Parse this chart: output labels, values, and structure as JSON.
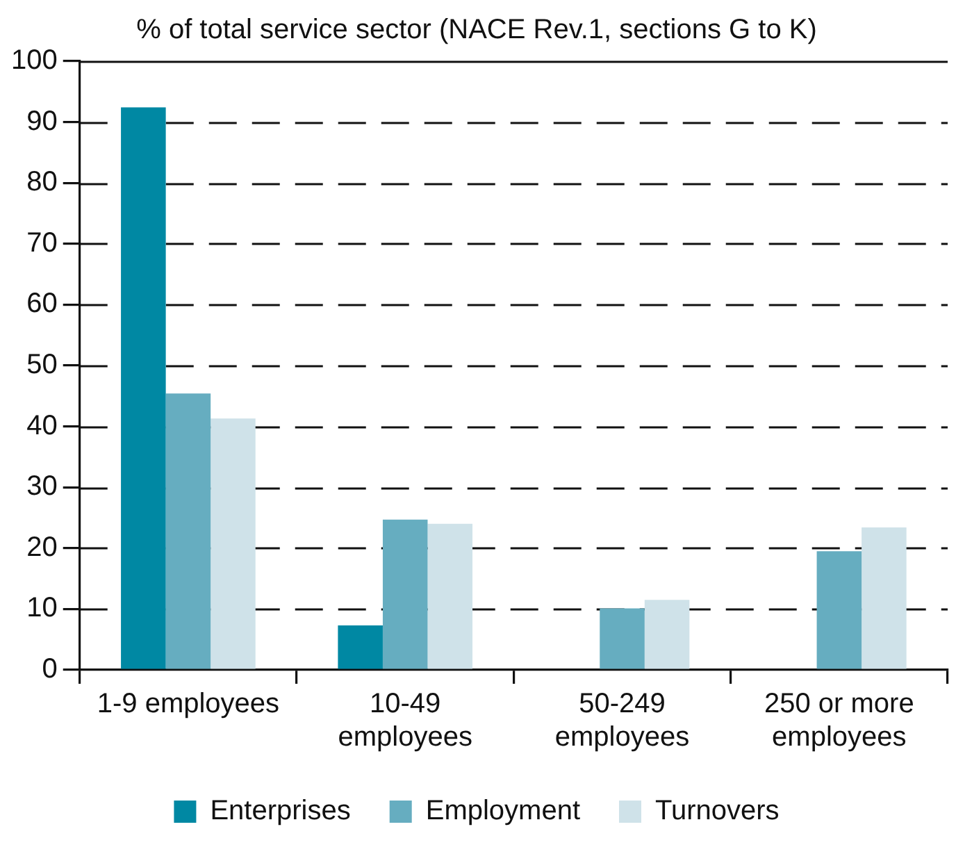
{
  "chart_data": {
    "type": "bar",
    "title": "% of total service sector (NACE Rev.1, sections G to K)",
    "categories": [
      "1-9 employees",
      "10-49 employees",
      "50-249 employees",
      "250 or more employees"
    ],
    "series": [
      {
        "name": "Enterprises",
        "color": "#0088a3",
        "values": [
          92.4,
          7.3,
          0,
          0
        ]
      },
      {
        "name": "Employment",
        "color": "#66adc0",
        "values": [
          45.4,
          24.7,
          10.1,
          19.5
        ]
      },
      {
        "name": "Turnovers",
        "color": "#cfe2e9",
        "values": [
          41.3,
          24,
          11.5,
          23.4
        ]
      }
    ],
    "ylim": [
      0,
      100
    ],
    "yticks": [
      0,
      10,
      20,
      30,
      40,
      50,
      60,
      70,
      80,
      90,
      100
    ],
    "grid": "y",
    "legend": "bottom"
  }
}
